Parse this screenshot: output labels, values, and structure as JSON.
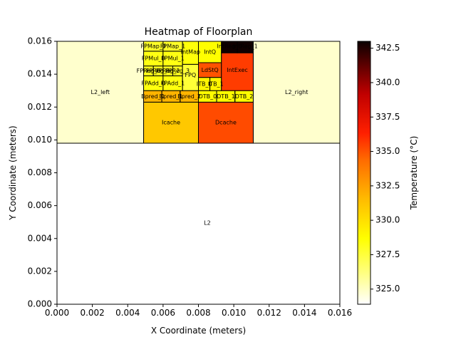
{
  "chart_data": {
    "type": "heatmap",
    "title": "Heatmap of Floorplan",
    "xlabel": "X Coordinate (meters)",
    "ylabel": "Y Coordinate (meters)",
    "xlim": [
      0,
      0.016
    ],
    "ylim": [
      0,
      0.016
    ],
    "xticks": [
      "0.000",
      "0.002",
      "0.004",
      "0.006",
      "0.008",
      "0.010",
      "0.012",
      "0.014",
      "0.016"
    ],
    "yticks": [
      "0.000",
      "0.002",
      "0.004",
      "0.006",
      "0.008",
      "0.010",
      "0.012",
      "0.014",
      "0.016"
    ],
    "colorbar": {
      "label": "Temperature (°C)",
      "range": [
        323.9,
        343.0
      ],
      "ticks": [
        "325.0",
        "327.5",
        "330.0",
        "332.5",
        "335.0",
        "337.5",
        "340.0",
        "342.5"
      ],
      "colormap": "hot_r"
    },
    "blocks": [
      {
        "name": "L2",
        "x": 0.0,
        "y": 0.0,
        "w": 0.016,
        "h": 0.0098,
        "temp": 323.9
      },
      {
        "name": "L2_left",
        "x": 0.0,
        "y": 0.0098,
        "w": 0.0049,
        "h": 0.0062,
        "temp": 324.8
      },
      {
        "name": "L2_right",
        "x": 0.0111,
        "y": 0.0098,
        "w": 0.0049,
        "h": 0.0062,
        "temp": 324.8
      },
      {
        "name": "Icache",
        "x": 0.0049,
        "y": 0.0098,
        "w": 0.0031,
        "h": 0.0025,
        "temp": 331.0
      },
      {
        "name": "Dcache",
        "x": 0.008,
        "y": 0.0098,
        "w": 0.0031,
        "h": 0.0025,
        "temp": 335.2
      },
      {
        "name": "Bpred_0",
        "x": 0.0049,
        "y": 0.0123,
        "w": 0.00103,
        "h": 0.0007,
        "temp": 331.8
      },
      {
        "name": "Bpred_1",
        "x": 0.00593,
        "y": 0.0123,
        "w": 0.00103,
        "h": 0.0007,
        "temp": 331.8
      },
      {
        "name": "Bpred_2",
        "x": 0.00697,
        "y": 0.0123,
        "w": 0.00103,
        "h": 0.0007,
        "temp": 331.8
      },
      {
        "name": "DTB_0",
        "x": 0.008,
        "y": 0.0123,
        "w": 0.00103,
        "h": 0.0007,
        "temp": 328.8
      },
      {
        "name": "DTB_1",
        "x": 0.00903,
        "y": 0.0123,
        "w": 0.00103,
        "h": 0.0007,
        "temp": 328.8
      },
      {
        "name": "DTB_2",
        "x": 0.01007,
        "y": 0.0123,
        "w": 0.00103,
        "h": 0.0007,
        "temp": 328.8
      },
      {
        "name": "FPAdd_0",
        "x": 0.0049,
        "y": 0.013,
        "w": 0.0011,
        "h": 0.0009,
        "temp": 328.4
      },
      {
        "name": "FPAdd_1",
        "x": 0.006,
        "y": 0.013,
        "w": 0.0011,
        "h": 0.0009,
        "temp": 328.4
      },
      {
        "name": "FPReg_0",
        "x": 0.0049,
        "y": 0.0139,
        "w": 0.00055,
        "h": 0.0006,
        "temp": 328.1
      },
      {
        "name": "FPReg_1",
        "x": 0.00545,
        "y": 0.0139,
        "w": 0.00055,
        "h": 0.0006,
        "temp": 328.1
      },
      {
        "name": "FPReg_2",
        "x": 0.006,
        "y": 0.0139,
        "w": 0.00055,
        "h": 0.0006,
        "temp": 328.1
      },
      {
        "name": "FPReg_3",
        "x": 0.00655,
        "y": 0.0139,
        "w": 0.00055,
        "h": 0.0006,
        "temp": 328.1
      },
      {
        "name": "FPMul_0",
        "x": 0.0049,
        "y": 0.0145,
        "w": 0.0011,
        "h": 0.0009,
        "temp": 328.3
      },
      {
        "name": "FPMul_1",
        "x": 0.006,
        "y": 0.0145,
        "w": 0.0011,
        "h": 0.0009,
        "temp": 328.3
      },
      {
        "name": "FPMap_0",
        "x": 0.0049,
        "y": 0.0154,
        "w": 0.0011,
        "h": 0.0006,
        "temp": 327.9
      },
      {
        "name": "FPMap_1",
        "x": 0.006,
        "y": 0.0154,
        "w": 0.0011,
        "h": 0.0006,
        "temp": 327.9
      },
      {
        "name": "FPQ",
        "x": 0.0071,
        "y": 0.013,
        "w": 0.0009,
        "h": 0.0016,
        "temp": 327.6
      },
      {
        "name": "IntMap",
        "x": 0.0071,
        "y": 0.0146,
        "w": 0.0009,
        "h": 0.0014,
        "temp": 328.5
      },
      {
        "name": "IntQ",
        "x": 0.008,
        "y": 0.0147,
        "w": 0.0013,
        "h": 0.0013,
        "temp": 328.7
      },
      {
        "name": "LdStQ",
        "x": 0.008,
        "y": 0.0138,
        "w": 0.0013,
        "h": 0.0009,
        "temp": 335.0
      },
      {
        "name": "ITB_0",
        "x": 0.008,
        "y": 0.013,
        "w": 0.00065,
        "h": 0.0008,
        "temp": 329.1
      },
      {
        "name": "ITB_1",
        "x": 0.00865,
        "y": 0.013,
        "w": 0.00065,
        "h": 0.0008,
        "temp": 329.1
      },
      {
        "name": "IntExec",
        "x": 0.0093,
        "y": 0.013,
        "w": 0.0018,
        "h": 0.0023,
        "temp": 335.6
      },
      {
        "name": "IntReg_0",
        "x": 0.0093,
        "y": 0.0153,
        "w": 0.0009,
        "h": 0.0007,
        "temp": 342.9
      },
      {
        "name": "IntReg_1",
        "x": 0.0102,
        "y": 0.0153,
        "w": 0.0009,
        "h": 0.0007,
        "temp": 342.9
      }
    ],
    "labels": [
      {
        "text": "L2",
        "block": "L2",
        "x": 0.0085,
        "y": 0.00495
      },
      {
        "text": "L2_left",
        "block": "L2_left",
        "x": 0.00245,
        "y": 0.0129
      },
      {
        "text": "L2_right",
        "block": "L2_right",
        "x": 0.01355,
        "y": 0.0129
      },
      {
        "text": "Icache",
        "block": "Icache",
        "x": 0.00645,
        "y": 0.01105
      },
      {
        "text": "Dcache",
        "block": "Dcache",
        "x": 0.00955,
        "y": 0.01105
      },
      {
        "text": "Bpred_0",
        "block": "Bpred_0",
        "x": 0.00542,
        "y": 0.01265
      },
      {
        "text": "Bpred_1",
        "block": "Bpred_1",
        "x": 0.00645,
        "y": 0.01265
      },
      {
        "text": "Bpred_2",
        "block": "Bpred_2",
        "x": 0.00748,
        "y": 0.01265
      },
      {
        "text": "DTB_0",
        "block": "DTB_0",
        "x": 0.00852,
        "y": 0.01265
      },
      {
        "text": "DTB_1",
        "block": "DTB_1",
        "x": 0.00955,
        "y": 0.01265
      },
      {
        "text": "DTB_2",
        "block": "DTB_2",
        "x": 0.01058,
        "y": 0.01265
      },
      {
        "text": "FPAdd_0",
        "block": "FPAdd_0",
        "x": 0.00545,
        "y": 0.01345
      },
      {
        "text": "FPAdd_1",
        "block": "FPAdd_1",
        "x": 0.00655,
        "y": 0.01345
      },
      {
        "text": "FPReg_0",
        "block": "FPReg_0",
        "x": 0.00518,
        "y": 0.0142
      },
      {
        "text": "FPReg_1",
        "block": "FPReg_1",
        "x": 0.00572,
        "y": 0.0142
      },
      {
        "text": "FPReg_2",
        "block": "FPReg_2",
        "x": 0.00627,
        "y": 0.0142
      },
      {
        "text": "FPReg_3",
        "block": "FPReg_3",
        "x": 0.00682,
        "y": 0.0142
      },
      {
        "text": "FPMul_0",
        "block": "FPMul_0",
        "x": 0.00545,
        "y": 0.01495
      },
      {
        "text": "FPMul_1",
        "block": "FPMul_1",
        "x": 0.00655,
        "y": 0.01495
      },
      {
        "text": "FPMap_0",
        "block": "FPMap_0",
        "x": 0.00545,
        "y": 0.0157
      },
      {
        "text": "FPMap_1",
        "block": "FPMap_1",
        "x": 0.00655,
        "y": 0.0157
      },
      {
        "text": "FPQ",
        "block": "FPQ",
        "x": 0.00755,
        "y": 0.01395
      },
      {
        "text": "IntMap",
        "block": "IntMap",
        "x": 0.00755,
        "y": 0.01535
      },
      {
        "text": "IntQ",
        "block": "IntQ",
        "x": 0.00865,
        "y": 0.01535
      },
      {
        "text": "LdStQ",
        "block": "LdStQ",
        "x": 0.00865,
        "y": 0.01425
      },
      {
        "text": "ITB_0",
        "block": "ITB_0",
        "x": 0.00833,
        "y": 0.0134
      },
      {
        "text": "ITB_1",
        "block": "ITB_1",
        "x": 0.00898,
        "y": 0.0134
      },
      {
        "text": "IntExec",
        "block": "IntExec",
        "x": 0.0102,
        "y": 0.01425
      },
      {
        "text": "IntReg_0",
        "block": "IntReg_0",
        "x": 0.00975,
        "y": 0.0157
      },
      {
        "text": "IntReg_1",
        "block": "IntReg_1",
        "x": 0.01065,
        "y": 0.0157
      }
    ]
  }
}
